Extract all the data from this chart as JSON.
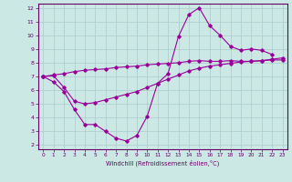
{
  "xlabel": "Windchill (Refroidissement éolien,°C)",
  "background_color": "#cce8e4",
  "line_color": "#990099",
  "grid_color": "#aacccc",
  "xlim": [
    -0.5,
    23.5
  ],
  "ylim": [
    1.7,
    12.3
  ],
  "xticks": [
    0,
    1,
    2,
    3,
    4,
    5,
    6,
    7,
    8,
    9,
    10,
    11,
    12,
    13,
    14,
    15,
    16,
    17,
    18,
    19,
    20,
    21,
    22,
    23
  ],
  "yticks": [
    2,
    3,
    4,
    5,
    6,
    7,
    8,
    9,
    10,
    11,
    12
  ],
  "line1_x": [
    0,
    1,
    2,
    3,
    4,
    5,
    6,
    7,
    8,
    9,
    10,
    11,
    12,
    13,
    14,
    15,
    16,
    17,
    18,
    19,
    20,
    21,
    22
  ],
  "line1_y": [
    7.0,
    6.6,
    5.9,
    4.6,
    3.5,
    3.5,
    3.0,
    2.5,
    2.3,
    2.7,
    4.1,
    6.5,
    7.2,
    9.9,
    11.5,
    12.0,
    10.7,
    10.0,
    9.2,
    8.9,
    9.0,
    8.9,
    8.6
  ],
  "line2_x": [
    0,
    1,
    2,
    3,
    4,
    5,
    6,
    7,
    8,
    9,
    10,
    11,
    12,
    13,
    14,
    15,
    16,
    17,
    18,
    19,
    20,
    21,
    22,
    23
  ],
  "line2_y": [
    7.0,
    7.05,
    6.2,
    5.2,
    5.0,
    5.1,
    5.3,
    5.5,
    5.7,
    5.9,
    6.2,
    6.5,
    6.8,
    7.1,
    7.4,
    7.6,
    7.75,
    7.85,
    7.95,
    8.05,
    8.1,
    8.15,
    8.25,
    8.35
  ],
  "line3_x": [
    0,
    1,
    2,
    3,
    4,
    5,
    6,
    7,
    8,
    9,
    10,
    11,
    12,
    13,
    14,
    15,
    16,
    17,
    18,
    19,
    20,
    21,
    22,
    23
  ],
  "line3_y": [
    7.0,
    7.1,
    7.2,
    7.35,
    7.45,
    7.5,
    7.55,
    7.65,
    7.7,
    7.75,
    7.85,
    7.9,
    7.95,
    8.0,
    8.1,
    8.15,
    8.1,
    8.1,
    8.15,
    8.1,
    8.1,
    8.15,
    8.2,
    8.2
  ]
}
